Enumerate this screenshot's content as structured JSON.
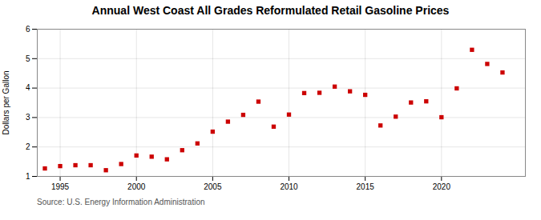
{
  "chart_data": {
    "type": "scatter",
    "title": "Annual West Coast All Grades Reformulated Retail Gasoline Prices",
    "ylabel": "Dollars per Gallon",
    "annotation": "Source: U.S. Energy Information Administration",
    "x": [
      1994,
      1995,
      1996,
      1997,
      1998,
      1999,
      2000,
      2001,
      2002,
      2003,
      2004,
      2005,
      2006,
      2007,
      2008,
      2009,
      2010,
      2011,
      2012,
      2013,
      2014,
      2015,
      2016,
      2017,
      2018,
      2019,
      2020,
      2021,
      2022,
      2023,
      2024
    ],
    "values": [
      1.27,
      1.35,
      1.38,
      1.38,
      1.21,
      1.42,
      1.71,
      1.67,
      1.58,
      1.89,
      2.12,
      2.52,
      2.86,
      3.09,
      3.54,
      2.69,
      3.1,
      3.83,
      3.84,
      4.05,
      3.89,
      3.77,
      2.73,
      3.03,
      3.51,
      3.55,
      3.01,
      3.99,
      5.3,
      4.82,
      4.53
    ],
    "color": "#cc0000",
    "marker": "square",
    "xlim": [
      1993.5,
      2025.5
    ],
    "ylim": [
      1,
      6
    ],
    "xticks": [
      1995,
      2000,
      2005,
      2010,
      2015,
      2020
    ],
    "yticks": [
      1,
      2,
      3,
      4,
      5,
      6
    ],
    "grid": true
  }
}
